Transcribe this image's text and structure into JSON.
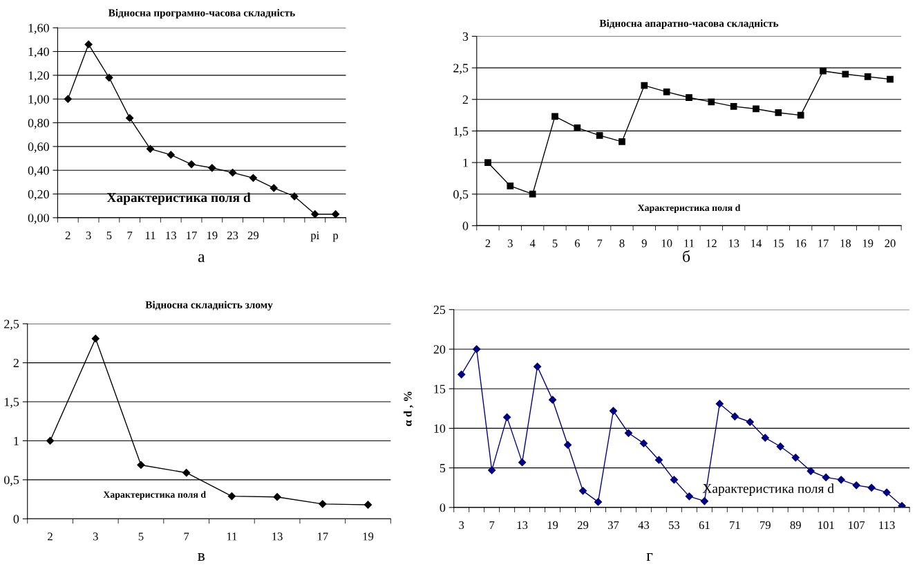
{
  "chart_data": [
    {
      "type": "line",
      "title": "Відносна програмно-часова складність",
      "xlabel": "Характеристика поля d",
      "annotations": [
        "а"
      ],
      "categories": [
        "2",
        "3",
        "5",
        "7",
        "11",
        "13",
        "17",
        "19",
        "23",
        "29",
        null,
        null,
        "pi",
        "p"
      ],
      "values": [
        1.0,
        1.46,
        1.18,
        0.84,
        0.58,
        0.53,
        0.45,
        0.42,
        0.38,
        0.335,
        0.25,
        0.18,
        0.03,
        0.03
      ],
      "color": "#000000",
      "marker": "diamond",
      "grid": "y",
      "ylim": [
        0,
        1.6
      ],
      "yticks": [
        {
          "value": 0,
          "label": "0,00"
        },
        {
          "value": 0.2,
          "label": "0,20"
        },
        {
          "value": 0.4,
          "label": "0,40"
        },
        {
          "value": 0.6,
          "label": "0,60"
        },
        {
          "value": 0.8,
          "label": "0,80"
        },
        {
          "value": 1.0,
          "label": "1,00"
        },
        {
          "value": 1.2,
          "label": "1,20"
        },
        {
          "value": 1.4,
          "label": "1,40"
        },
        {
          "value": 1.6,
          "label": "1,60"
        }
      ]
    },
    {
      "type": "line",
      "title": "Відносна апаратно-часова складність",
      "xlabel": "Характеристика поля d",
      "annotations": [
        "б"
      ],
      "categories": [
        "2",
        "3",
        "4",
        "5",
        "6",
        "7",
        "8",
        "9",
        "10",
        "11",
        "12",
        "13",
        "14",
        "15",
        "16",
        "17",
        "18",
        "19",
        "20"
      ],
      "values": [
        1.0,
        0.63,
        0.5,
        1.73,
        1.55,
        1.43,
        1.33,
        2.22,
        2.12,
        2.03,
        1.96,
        1.89,
        1.85,
        1.79,
        1.75,
        2.45,
        2.4,
        2.36,
        2.32
      ],
      "color": "#000000",
      "marker": "square",
      "grid": "y",
      "ylim": [
        0,
        3
      ],
      "yticks": [
        0,
        {
          "value": 0.5,
          "label": "0,5"
        },
        1,
        {
          "value": 1.5,
          "label": "1,5"
        },
        2,
        {
          "value": 2.5,
          "label": "2,5"
        },
        3
      ]
    },
    {
      "type": "line",
      "title": "Відносна складність злому",
      "xlabel": "Характеристика поля d",
      "annotations": [
        "в"
      ],
      "categories": [
        "2",
        "3",
        "5",
        "7",
        "11",
        "13",
        "17",
        "19"
      ],
      "values": [
        1.0,
        2.31,
        0.69,
        0.59,
        0.29,
        0.28,
        0.19,
        0.18
      ],
      "color": "#000000",
      "marker": "diamond",
      "grid": "y",
      "ylim": [
        0,
        2.5
      ],
      "yticks": [
        0,
        {
          "value": 0.5,
          "label": "0,5"
        },
        1,
        {
          "value": 1.5,
          "label": "1,5"
        },
        2,
        {
          "value": 2.5,
          "label": "2,5"
        }
      ]
    },
    {
      "type": "line",
      "xlabel": "Характеристика поля d",
      "ylabel": "α d , %",
      "annotations": [
        "г"
      ],
      "categories": [
        "3",
        null,
        "7",
        null,
        "13",
        null,
        "19",
        null,
        "29",
        null,
        "37",
        null,
        "43",
        null,
        "53",
        null,
        "61",
        null,
        "71",
        null,
        "79",
        null,
        "89",
        null,
        "101",
        null,
        "107",
        null,
        "113",
        null
      ],
      "values": [
        16.8,
        20.0,
        4.7,
        11.4,
        5.7,
        17.8,
        13.6,
        7.9,
        2.1,
        0.7,
        12.2,
        9.4,
        8.1,
        6.0,
        3.5,
        1.4,
        0.8,
        13.1,
        11.5,
        10.8,
        8.8,
        7.7,
        6.3,
        4.6,
        3.8,
        3.5,
        2.8,
        2.5,
        1.9,
        0.2
      ],
      "color": "#000080",
      "marker": "diamond",
      "grid": "y",
      "ylim": [
        0,
        25
      ],
      "yticks": [
        0,
        5,
        10,
        15,
        20,
        25
      ]
    }
  ]
}
